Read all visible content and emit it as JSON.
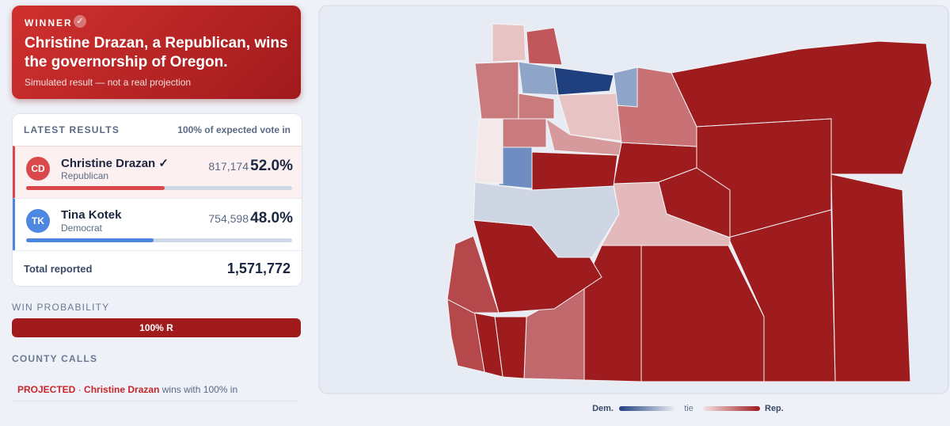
{
  "banner": {
    "label": "WINNER",
    "headline": "Christine Drazan, a Republican, wins the governorship of Oregon.",
    "note": "Simulated result — not a real projection"
  },
  "results": {
    "title": "LATEST RESULTS",
    "expected": "100% of expected vote in",
    "candidates": [
      {
        "initials": "CD",
        "name": "Christine Drazan",
        "check": "✓",
        "party": "Republican",
        "votes": "817,174",
        "share": "52.0%"
      },
      {
        "initials": "TK",
        "name": "Tina Kotek",
        "party": "Democrat",
        "votes": "754,598",
        "share": "48.0%"
      }
    ],
    "total_label": "Total reported",
    "total": "1,571,772"
  },
  "win_probability": {
    "label": "WIN PROBABILITY",
    "bar": "100% R"
  },
  "county_calls": {
    "label": "COUNTY CALLS",
    "status": "PROJECTED",
    "separator": "·",
    "candidate": "Christine Drazan",
    "text": "wins with 100% in"
  },
  "legend": {
    "dem": "Dem.",
    "tie": "tie",
    "rep": "Rep."
  }
}
